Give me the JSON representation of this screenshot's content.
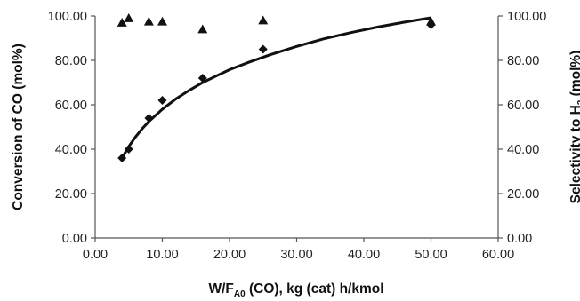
{
  "chart_data": {
    "type": "scatter",
    "xlabel": "W/F_A0 (CO), kg (cat) h/kmol",
    "xlabel_parts": {
      "main": "W/F",
      "sub": "A0",
      "rest": " (CO), kg (cat) h/kmol"
    },
    "ylabel": "Conversion of CO  (mol%)",
    "y2label": "Selectivity to H₂ (mol%)",
    "y2label_parts": {
      "main": "Selectivity to H",
      "sub": "2",
      "rest": " (mol%)"
    },
    "xlim": [
      0,
      60
    ],
    "ylim": [
      0,
      100
    ],
    "y2lim": [
      0,
      100
    ],
    "x_ticks": [
      "0.00",
      "10.00",
      "20.00",
      "30.00",
      "40.00",
      "50.00",
      "60.00"
    ],
    "x_tick_values": [
      0,
      10,
      20,
      30,
      40,
      50,
      60
    ],
    "y_ticks": [
      "0.00",
      "20.00",
      "40.00",
      "60.00",
      "80.00",
      "100.00"
    ],
    "y_tick_values": [
      0,
      20,
      40,
      60,
      80,
      100
    ],
    "y2_ticks": [
      "0.00",
      "20.00",
      "40.00",
      "60.00",
      "80.00",
      "100.00"
    ],
    "grid": false,
    "series": [
      {
        "marker": "diamond",
        "axis": "left",
        "x": [
          4,
          5,
          8,
          10,
          16,
          25,
          50
        ],
        "y": [
          36,
          40,
          54,
          62,
          72,
          85,
          96
        ]
      },
      {
        "marker": "triangle",
        "axis": "right",
        "x": [
          4,
          5,
          8,
          10,
          16,
          25,
          50
        ],
        "y": [
          97,
          99,
          97.5,
          97.5,
          94,
          98,
          97.5
        ]
      },
      {
        "type": "line",
        "axis": "left",
        "x": [
          4,
          5,
          6,
          7,
          8,
          10,
          12,
          14,
          16,
          18,
          20,
          23,
          26,
          30,
          34,
          38,
          42,
          46,
          50
        ],
        "y": [
          36,
          41.2,
          45.5,
          49.2,
          52.5,
          58.0,
          62.6,
          66.5,
          70.0,
          72.9,
          75.8,
          79.3,
          82.5,
          86.3,
          89.7,
          92.5,
          95.0,
          97.2,
          99.2
        ]
      }
    ]
  }
}
